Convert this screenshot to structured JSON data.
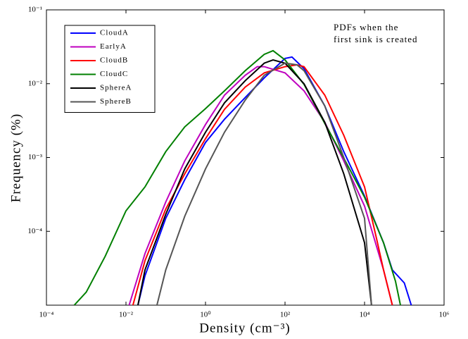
{
  "chart_data": {
    "type": "line",
    "xlabel": "Density (cm⁻³)",
    "ylabel": "Frequency (%)",
    "annotation": [
      "PDFs when the",
      "first sink is created"
    ],
    "xscale": "log",
    "yscale": "log",
    "grid": false,
    "legend": "upper left",
    "xlim": [
      0.0001,
      1000000
    ],
    "ylim": [
      1e-05,
      0.1
    ],
    "xticks": [
      {
        "value": 0.0001,
        "label": "10⁻⁴"
      },
      {
        "value": 0.01,
        "label": "10⁻²"
      },
      {
        "value": 1,
        "label": "10⁰"
      },
      {
        "value": 100,
        "label": "10²"
      },
      {
        "value": 10000,
        "label": "10⁴"
      },
      {
        "value": 1000000,
        "label": "10⁶"
      }
    ],
    "yticks": [
      {
        "value": 0.0001,
        "label": "10⁻⁴"
      },
      {
        "value": 0.001,
        "label": "10⁻³"
      },
      {
        "value": 0.01,
        "label": "10⁻²"
      },
      {
        "value": 0.1,
        "label": "10⁻¹"
      }
    ],
    "series": [
      {
        "name": "CloudA",
        "color": "#0000ff",
        "x": [
          0.02,
          0.03,
          0.1,
          0.3,
          1,
          3,
          10,
          30,
          100,
          150,
          300,
          1000,
          3000,
          10000,
          30000,
          50000,
          100000,
          150000
        ],
        "values": [
          1e-05,
          2.5e-05,
          0.00015,
          0.0005,
          0.0016,
          0.0033,
          0.0065,
          0.012,
          0.022,
          0.023,
          0.016,
          0.005,
          0.0012,
          0.0003,
          7e-05,
          3e-05,
          2e-05,
          1e-05
        ]
      },
      {
        "name": "EarlyA",
        "color": "#bf00bf",
        "x": [
          0.012,
          0.03,
          0.1,
          0.3,
          1,
          3,
          10,
          20,
          30,
          100,
          300,
          1000,
          3000,
          10000,
          30000,
          50000
        ],
        "values": [
          1e-05,
          5e-05,
          0.00025,
          0.0009,
          0.0028,
          0.007,
          0.013,
          0.017,
          0.017,
          0.014,
          0.008,
          0.003,
          0.0009,
          0.00022,
          3e-05,
          1e-05
        ]
      },
      {
        "name": "CloudB",
        "color": "#ff0000",
        "x": [
          0.015,
          0.03,
          0.1,
          0.3,
          1,
          3,
          10,
          30,
          100,
          200,
          300,
          1000,
          3000,
          10000,
          20000,
          30000,
          50000
        ],
        "values": [
          1e-05,
          4e-05,
          0.0002,
          0.0006,
          0.0018,
          0.0045,
          0.009,
          0.014,
          0.017,
          0.018,
          0.017,
          0.007,
          0.002,
          0.0004,
          8e-05,
          3e-05,
          1e-05
        ]
      },
      {
        "name": "CloudC",
        "color": "#008000",
        "x": [
          0.0005,
          0.001,
          0.003,
          0.01,
          0.03,
          0.1,
          0.3,
          1,
          3,
          10,
          30,
          50,
          100,
          300,
          1000,
          3000,
          10000,
          30000,
          60000,
          80000
        ],
        "values": [
          1e-05,
          1.5e-05,
          4.6e-05,
          0.00019,
          0.0004,
          0.0012,
          0.0026,
          0.0046,
          0.008,
          0.015,
          0.025,
          0.028,
          0.021,
          0.0098,
          0.0029,
          0.00098,
          0.00029,
          7e-05,
          2.1e-05,
          1e-05
        ]
      },
      {
        "name": "SphereA",
        "color": "#000000",
        "x": [
          0.02,
          0.03,
          0.1,
          0.3,
          1,
          3,
          10,
          30,
          50,
          100,
          300,
          1000,
          3000,
          10000,
          15000
        ],
        "values": [
          1e-05,
          3e-05,
          0.00017,
          0.0007,
          0.0022,
          0.0055,
          0.011,
          0.019,
          0.021,
          0.019,
          0.01,
          0.003,
          0.0006,
          7e-05,
          1e-05
        ]
      },
      {
        "name": "SphereB",
        "color": "#555555",
        "x": [
          0.06,
          0.1,
          0.3,
          1,
          3,
          10,
          30,
          100,
          200,
          300,
          1000,
          3000,
          10000,
          15000
        ],
        "values": [
          1e-05,
          3e-05,
          0.00016,
          0.0007,
          0.0022,
          0.006,
          0.013,
          0.019,
          0.018,
          0.015,
          0.005,
          0.001,
          0.00015,
          1e-05
        ]
      }
    ]
  }
}
